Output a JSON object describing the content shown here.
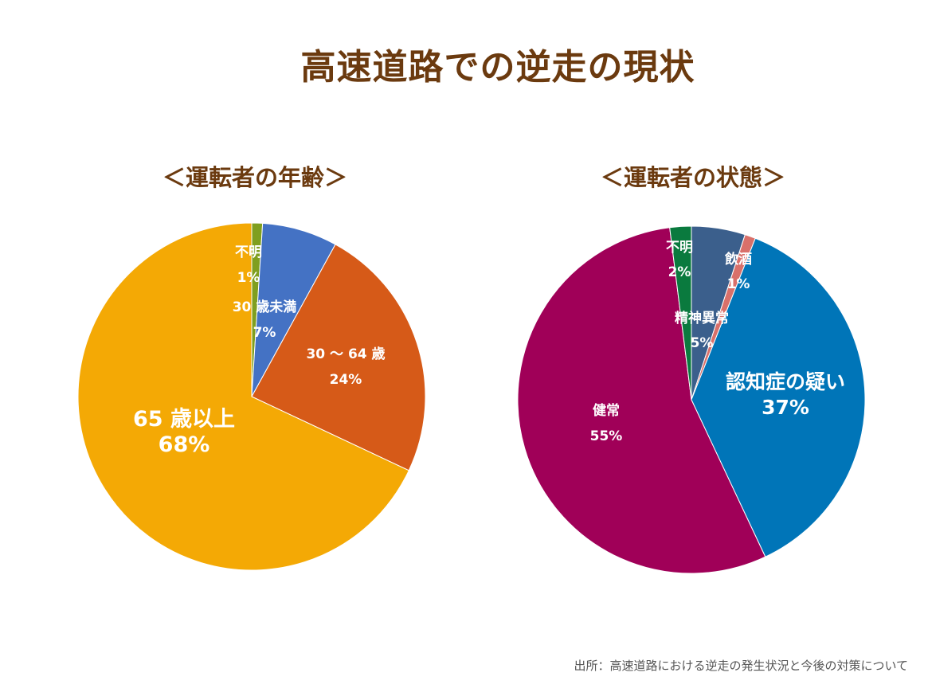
{
  "title": "高速道路での逆走の現状",
  "source": "出所：高速道路における逆走の発生状況と今後の対策について",
  "chart_data": [
    {
      "type": "pie",
      "title": "＜運転者の年齢＞",
      "slices": [
        {
          "label": "不明",
          "value": 1,
          "value_label": "1%",
          "color": "#7f9f1f"
        },
        {
          "label": "30 歳未満",
          "value": 7,
          "value_label": "7%",
          "color": "#4472c4"
        },
        {
          "label": "30 ～ 64 歳",
          "value": 24,
          "value_label": "24%",
          "color": "#d65a18"
        },
        {
          "label": "65 歳以上",
          "value": 68,
          "value_label": "68%",
          "color": "#f4a905"
        }
      ]
    },
    {
      "type": "pie",
      "title": "＜運転者の状態＞",
      "slices": [
        {
          "label": "精神異常",
          "value": 5,
          "value_label": "5%",
          "color": "#3b5f8c"
        },
        {
          "label": "飲酒",
          "value": 1,
          "value_label": "1%",
          "color": "#d9706a"
        },
        {
          "label": "認知症の疑い",
          "value": 37,
          "value_label": "37%",
          "color": "#0075b8"
        },
        {
          "label": "健常",
          "value": 55,
          "value_label": "55%",
          "color": "#a00058"
        },
        {
          "label": "不明",
          "value": 2,
          "value_label": "2%",
          "color": "#0a7a3e"
        }
      ]
    }
  ]
}
